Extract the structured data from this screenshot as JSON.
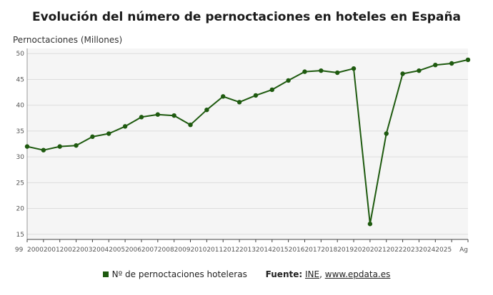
{
  "chart_data": {
    "type": "line",
    "title": "Evolución del número de pernoctaciones en hoteles en España",
    "ylabel": "Pernoctaciones (Millones)",
    "xlabel": "",
    "ylim": [
      14,
      51
    ],
    "yticks": [
      15,
      20,
      25,
      30,
      35,
      40,
      45,
      50
    ],
    "grid": true,
    "legend_position": "bottom",
    "categories": [
      "1999",
      "2000",
      "2001",
      "2002",
      "2003",
      "2004",
      "2005",
      "2006",
      "2007",
      "2008",
      "2009",
      "2010",
      "2011",
      "2012",
      "2013",
      "2014",
      "2015",
      "2016",
      "2017",
      "2018",
      "2019",
      "2020",
      "2021",
      "2022",
      "2023",
      "2024",
      "2025",
      "Ago"
    ],
    "x_tick_labels": [
      "99",
      "2000",
      "2001",
      "2002",
      "2003",
      "2004",
      "2005",
      "2006",
      "2007",
      "2008",
      "2009",
      "2010",
      "2011",
      "2012",
      "2013",
      "2014",
      "2015",
      "2016",
      "2017",
      "2018",
      "2019",
      "2020",
      "2021",
      "2022",
      "2023",
      "2024",
      "2025",
      "Ag"
    ],
    "series": [
      {
        "name": "Nº de pernoctaciones hoteleras",
        "color": "#1e5a0f",
        "values": [
          32.0,
          31.3,
          32.0,
          32.2,
          33.9,
          34.5,
          35.9,
          37.7,
          38.2,
          38.0,
          36.2,
          39.1,
          41.7,
          40.6,
          41.9,
          43.0,
          44.8,
          46.5,
          46.7,
          46.3,
          47.1,
          17.0,
          34.5,
          46.1,
          46.7,
          47.8,
          48.1,
          48.8
        ]
      }
    ]
  },
  "legend": {
    "label": "Nº de pernoctaciones hoteleras",
    "source_label": "Fuente:",
    "source_ine": "INE",
    "source_separator": ",",
    "source_site": "www.epdata.es"
  }
}
